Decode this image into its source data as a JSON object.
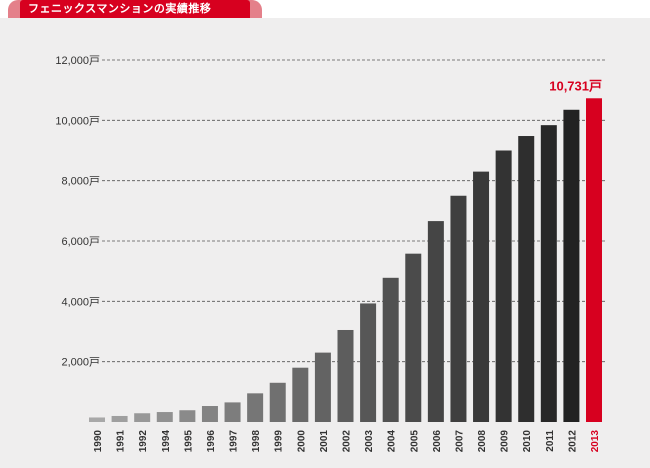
{
  "chart_data": {
    "type": "bar",
    "title": "フェニックスマンションの実績推移",
    "categories": [
      "1990",
      "1991",
      "1992",
      "1994",
      "1995",
      "1996",
      "1997",
      "1998",
      "1999",
      "2000",
      "2001",
      "2002",
      "2003",
      "2004",
      "2005",
      "2006",
      "2007",
      "2008",
      "2009",
      "2010",
      "2011",
      "2012",
      "2013"
    ],
    "values": [
      150,
      200,
      290,
      330,
      390,
      530,
      650,
      950,
      1300,
      1800,
      2300,
      3050,
      3930,
      4780,
      5580,
      6660,
      7500,
      8300,
      9000,
      9480,
      9840,
      10350,
      10731
    ],
    "unit": "戸",
    "y_ticks": [
      "2,000戸",
      "4,000戸",
      "6,000戸",
      "8,000戸",
      "10,000戸",
      "12,000戸"
    ],
    "y_tick_values": [
      2000,
      4000,
      6000,
      8000,
      10000,
      12000
    ],
    "ylim": [
      0,
      12000
    ],
    "highlight": {
      "category": "2013",
      "label": "10,731戸"
    },
    "grid": "horizontal-dashed",
    "legend": "none"
  },
  "colors": {
    "background": "#efeeee",
    "highlight": "#d7001f",
    "title_tab": "#d7001f",
    "title_tab_border": "#e4808a",
    "bar_light": "#a8a8a8",
    "bar_dark": "#222222",
    "grid": "#555555",
    "text": "#333333"
  }
}
